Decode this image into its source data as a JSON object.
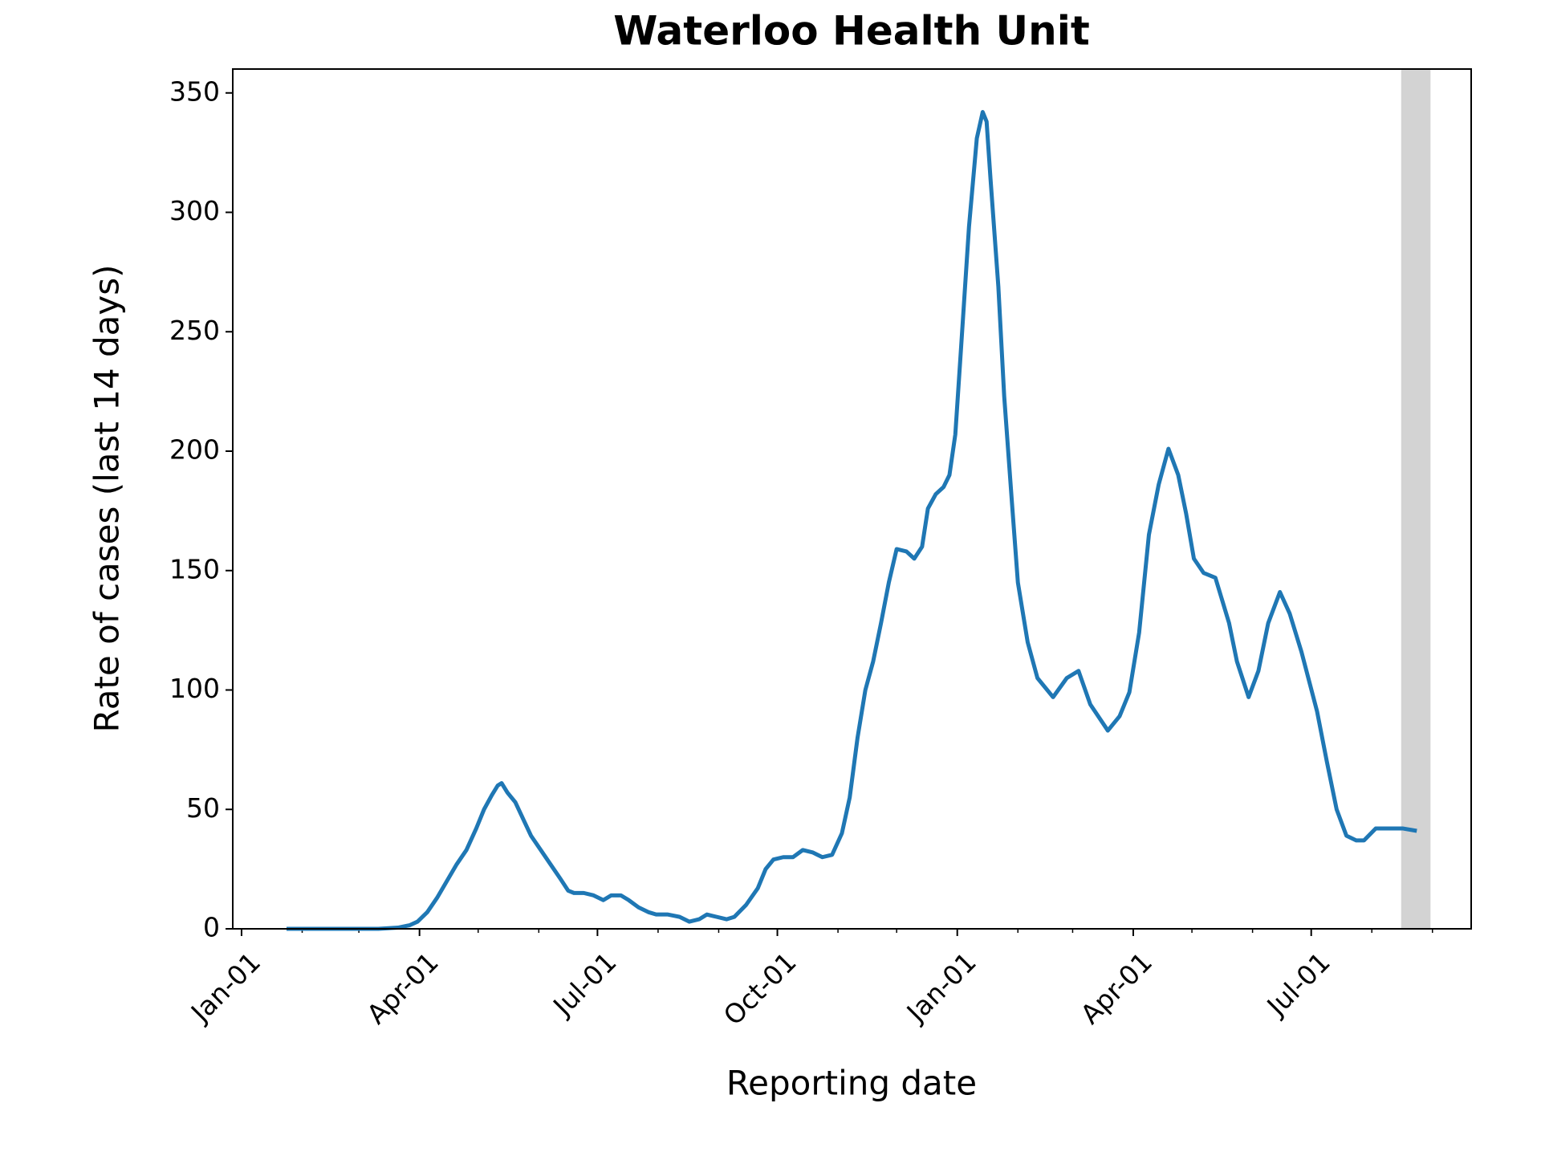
{
  "chart_data": {
    "type": "line",
    "title": "Waterloo Health Unit",
    "x_label": "Reporting date",
    "y_label": "Rate of cases (last 14 days)",
    "x": [
      23,
      50,
      70,
      80,
      86,
      90,
      95,
      100,
      105,
      110,
      115,
      120,
      124,
      128,
      131,
      133,
      136,
      140,
      144,
      148,
      153,
      158,
      163,
      167,
      170,
      175,
      180,
      185,
      189,
      194,
      198,
      203,
      208,
      212,
      218,
      224,
      229,
      234,
      238,
      243,
      248,
      252,
      258,
      264,
      268,
      272,
      277,
      282,
      287,
      292,
      297,
      302,
      307,
      311,
      315,
      319,
      323,
      327,
      331,
      335,
      340,
      344,
      348,
      351,
      355,
      359,
      362,
      365,
      368,
      372,
      376,
      379,
      381,
      383,
      387,
      390,
      394,
      397,
      402,
      407,
      415,
      422,
      428,
      434,
      443,
      449,
      454,
      459,
      464,
      469,
      474,
      479,
      483,
      487,
      492,
      498,
      505,
      509,
      515,
      520,
      525,
      531,
      536,
      542,
      550,
      555,
      560,
      565,
      570,
      574,
      580,
      587,
      594,
      601
    ],
    "series": [
      {
        "name": "Rate of cases",
        "color": "#1f77b4",
        "values": [
          0,
          0,
          0,
          0.5,
          1.5,
          3,
          7,
          13,
          20,
          27,
          33,
          42,
          50,
          56,
          60,
          61,
          57,
          53,
          46,
          39,
          33,
          27,
          21,
          16,
          15,
          15,
          14,
          12,
          14,
          14,
          12,
          9,
          7,
          6,
          6,
          5,
          3,
          4,
          6,
          5,
          4,
          5,
          10,
          17,
          25,
          29,
          30,
          30,
          33,
          32,
          30,
          31,
          40,
          55,
          80,
          100,
          112,
          128,
          145,
          159,
          158,
          155,
          160,
          176,
          182,
          185,
          190,
          207,
          244,
          294,
          331,
          342,
          338,
          314,
          269,
          223,
          178,
          145,
          120,
          105,
          97,
          105,
          108,
          94,
          83,
          89,
          99,
          124,
          165,
          186,
          201,
          190,
          174,
          155,
          149,
          147,
          128,
          112,
          97,
          108,
          128,
          141,
          132,
          116,
          91,
          70,
          50,
          39,
          37,
          37,
          42,
          42,
          42,
          41
        ]
      }
    ],
    "xlim": [
      -4.5,
      628.8
    ],
    "ylim": [
      0,
      360
    ],
    "xticks": [
      {
        "value": 0,
        "label": "Jan-01"
      },
      {
        "value": 91,
        "label": "Apr-01"
      },
      {
        "value": 182,
        "label": "Jul-01"
      },
      {
        "value": 274,
        "label": "Oct-01"
      },
      {
        "value": 366,
        "label": "Jan-01"
      },
      {
        "value": 456,
        "label": "Apr-01"
      },
      {
        "value": 547,
        "label": "Jul-01"
      }
    ],
    "xminorticks": [
      31,
      60,
      121,
      152,
      213,
      244,
      305,
      335,
      397,
      425,
      486,
      517,
      578,
      609
    ],
    "yticks": [
      0,
      50,
      100,
      150,
      200,
      250,
      300,
      350
    ],
    "shaded_span": [
      593,
      608
    ],
    "shade_color": "#d3d3d3"
  }
}
